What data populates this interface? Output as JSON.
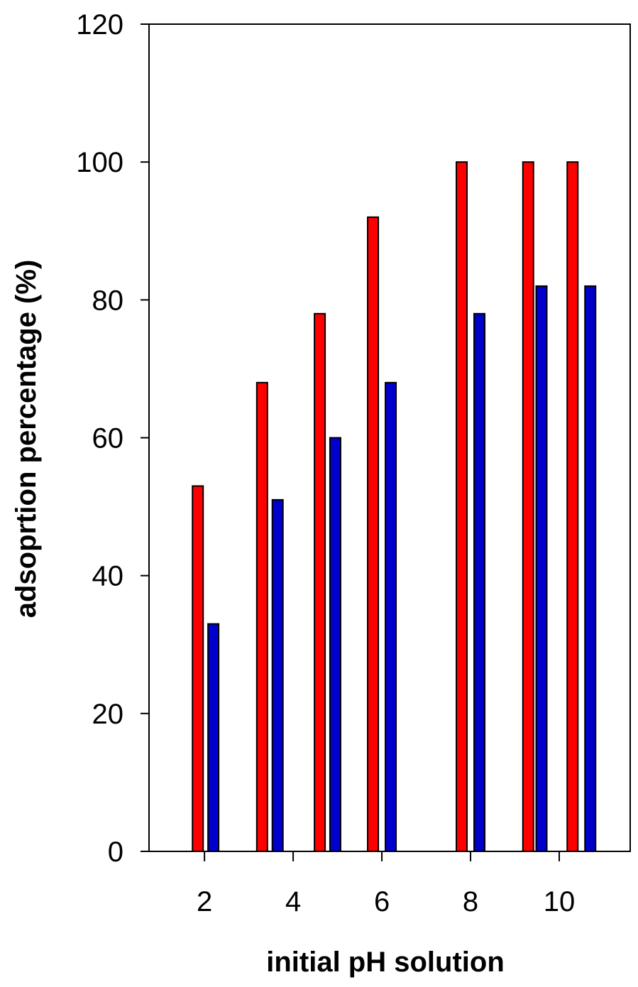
{
  "chart_data": {
    "type": "bar",
    "title": "",
    "xlabel": "initial pH solution",
    "ylabel": "adsoprtion percentage (%)",
    "ylim": [
      0,
      120
    ],
    "xlim": [
      0.75,
      11.6
    ],
    "yticks": [
      0,
      20,
      40,
      60,
      80,
      100,
      120
    ],
    "xticks": [
      2,
      4,
      6,
      8,
      10
    ],
    "grid": false,
    "legend": "none",
    "series": [
      {
        "color": "#ff0000",
        "points": [
          {
            "x": 1.85,
            "y": 53
          },
          {
            "x": 3.3,
            "y": 68
          },
          {
            "x": 4.6,
            "y": 78
          },
          {
            "x": 5.8,
            "y": 92
          },
          {
            "x": 7.8,
            "y": 100
          },
          {
            "x": 9.3,
            "y": 100
          },
          {
            "x": 10.3,
            "y": 100
          }
        ]
      },
      {
        "color": "#0000cc",
        "points": [
          {
            "x": 2.2,
            "y": 33
          },
          {
            "x": 3.65,
            "y": 51
          },
          {
            "x": 4.95,
            "y": 60
          },
          {
            "x": 6.2,
            "y": 68
          },
          {
            "x": 8.2,
            "y": 78
          },
          {
            "x": 9.6,
            "y": 82
          },
          {
            "x": 10.7,
            "y": 82
          }
        ]
      }
    ]
  }
}
